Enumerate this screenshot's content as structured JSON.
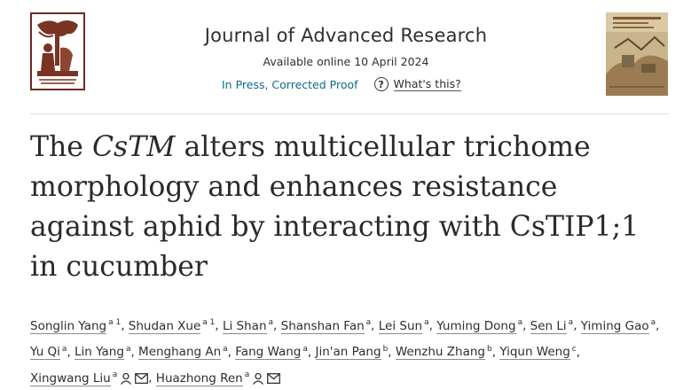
{
  "header": {
    "journal": "Journal of Advanced Research",
    "available": "Available online 10 April 2024",
    "status": "In Press, Corrected Proof",
    "help": "What's this?",
    "icons": {
      "publisher": "elsevier-tree-logo-icon",
      "cover": "journal-cover-icon",
      "help": "question-circle-icon"
    }
  },
  "article": {
    "title_pre": "The ",
    "title_italic": "CsTM",
    "title_post": " alters multicellular trichome morphology and enhances resistance against aphid by interacting with CsTIP1;1 in cucumber"
  },
  "authors": [
    {
      "name": "Songlin Yang",
      "aff": "a 1"
    },
    {
      "name": "Shudan Xue",
      "aff": "a 1"
    },
    {
      "name": "Li Shan",
      "aff": "a"
    },
    {
      "name": "Shanshan Fan",
      "aff": "a"
    },
    {
      "name": "Lei Sun",
      "aff": "a"
    },
    {
      "name": "Yuming Dong",
      "aff": "a"
    },
    {
      "name": "Sen Li",
      "aff": "a"
    },
    {
      "name": "Yiming Gao",
      "aff": "a"
    },
    {
      "name": "Yu Qi",
      "aff": "a"
    },
    {
      "name": "Lin Yang",
      "aff": "a"
    },
    {
      "name": "Menghang An",
      "aff": "a"
    },
    {
      "name": "Fang Wang",
      "aff": "a"
    },
    {
      "name": "Jin'an Pang",
      "aff": "b"
    },
    {
      "name": "Wenzhu Zhang",
      "aff": "b"
    },
    {
      "name": "Yiqun Weng",
      "aff": "c"
    },
    {
      "name": "Xingwang Liu",
      "aff": "a"
    },
    {
      "name": "Huazhong Ren",
      "aff": "a"
    }
  ],
  "colors": {
    "link": "#0c6b8a",
    "text": "#2e2e2e"
  }
}
